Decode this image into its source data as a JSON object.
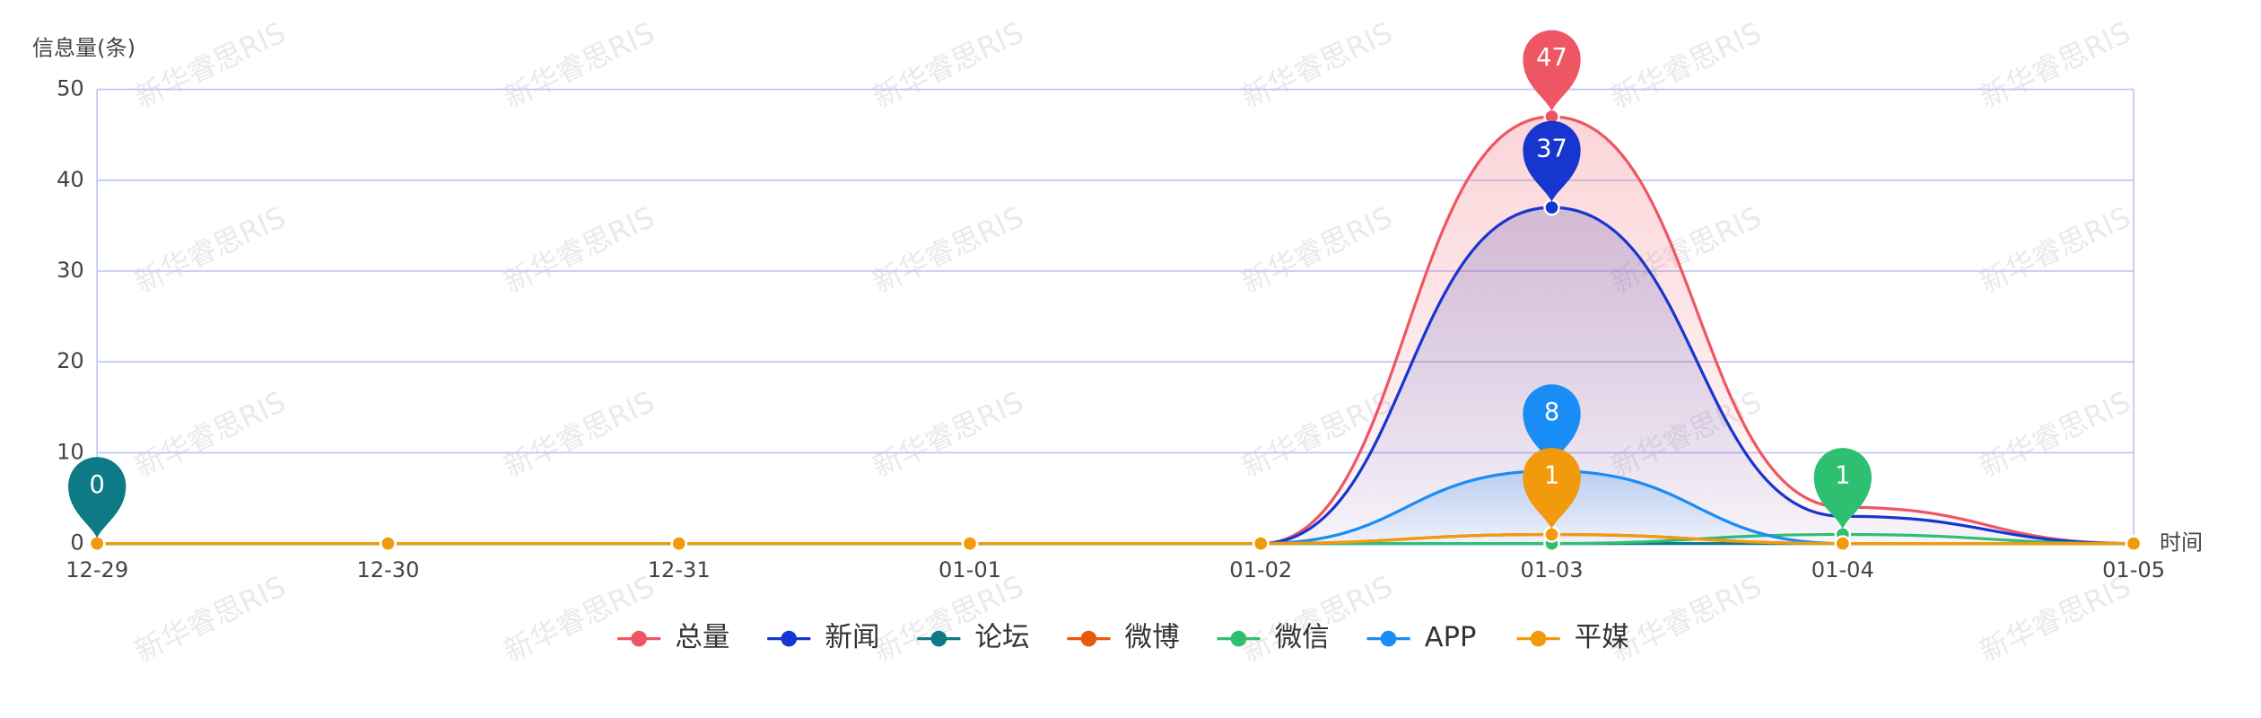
{
  "chart_data": {
    "type": "line",
    "y_axis_label": "信息量(条)",
    "x_axis_label": "时间",
    "watermark": "新华睿思RIS",
    "categories": [
      "12-29",
      "12-30",
      "12-31",
      "01-01",
      "01-02",
      "01-03",
      "01-04",
      "01-05"
    ],
    "ylim": [
      0,
      50
    ],
    "yticks": [
      0,
      10,
      20,
      30,
      40,
      50
    ],
    "grid": true,
    "legend": "bottom",
    "series": [
      {
        "name": "总量",
        "color": "#ef5663",
        "values": [
          0,
          0,
          0,
          0,
          0,
          47,
          4,
          0
        ],
        "area": true
      },
      {
        "name": "新闻",
        "color": "#1736d0",
        "values": [
          0,
          0,
          0,
          0,
          0,
          37,
          3,
          0
        ],
        "area": true
      },
      {
        "name": "论坛",
        "color": "#0e7a86",
        "values": [
          0,
          0,
          0,
          0,
          0,
          0,
          0,
          0
        ]
      },
      {
        "name": "微博",
        "color": "#e8590c",
        "values": [
          0,
          0,
          0,
          0,
          0,
          1,
          0,
          0
        ]
      },
      {
        "name": "微信",
        "color": "#2fbf71",
        "values": [
          0,
          0,
          0,
          0,
          0,
          0,
          1,
          0
        ]
      },
      {
        "name": "APP",
        "color": "#1a8cf5",
        "values": [
          0,
          0,
          0,
          0,
          0,
          8,
          0,
          0
        ],
        "area": true
      },
      {
        "name": "平媒",
        "color": "#f09a0c",
        "values": [
          0,
          0,
          0,
          0,
          0,
          1,
          0,
          0
        ]
      }
    ]
  }
}
